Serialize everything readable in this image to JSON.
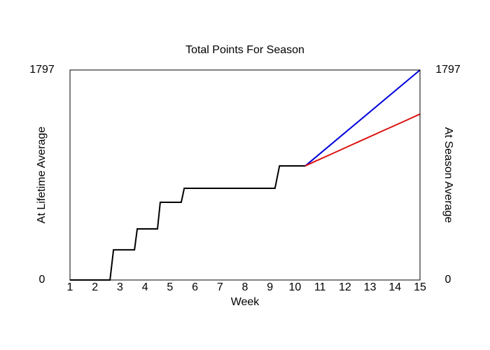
{
  "chart_data": {
    "type": "line",
    "title": "Total Points For Season",
    "xlabel": "Week",
    "ylabel": "At Lifetime Average",
    "y2label": "At Season Average",
    "xlim": [
      1,
      15
    ],
    "xticks": [
      1,
      2,
      3,
      4,
      5,
      6,
      7,
      8,
      9,
      10,
      11,
      12,
      13,
      14,
      15
    ],
    "ylim": [
      0,
      1797
    ],
    "yticks": [
      0,
      1797
    ],
    "y2lim": [
      0,
      1797
    ],
    "y2ticks": [
      0,
      1797
    ],
    "ylabel_color": "#0000cc",
    "y2label_color": "#dd0000",
    "series": [
      {
        "color": "#000000",
        "x": [
          1,
          2.6,
          2.74,
          3.58,
          3.69,
          4.5,
          4.61,
          5.45,
          5.57,
          9.2,
          9.38,
          10.41
        ],
        "values": [
          0,
          0,
          258,
          258,
          437,
          437,
          665,
          665,
          785,
          785,
          976,
          976
        ]
      },
      {
        "color": "#0000dd",
        "x": [
          10.41,
          15
        ],
        "values": [
          976,
          1797
        ]
      },
      {
        "color": "#dd1111",
        "axis": "y2",
        "x": [
          10.41,
          10.8,
          11.5,
          12.5,
          13.5,
          14.5,
          15
        ],
        "values": [
          976,
          1015,
          1082,
          1179,
          1275,
          1371,
          1420
        ]
      }
    ]
  }
}
